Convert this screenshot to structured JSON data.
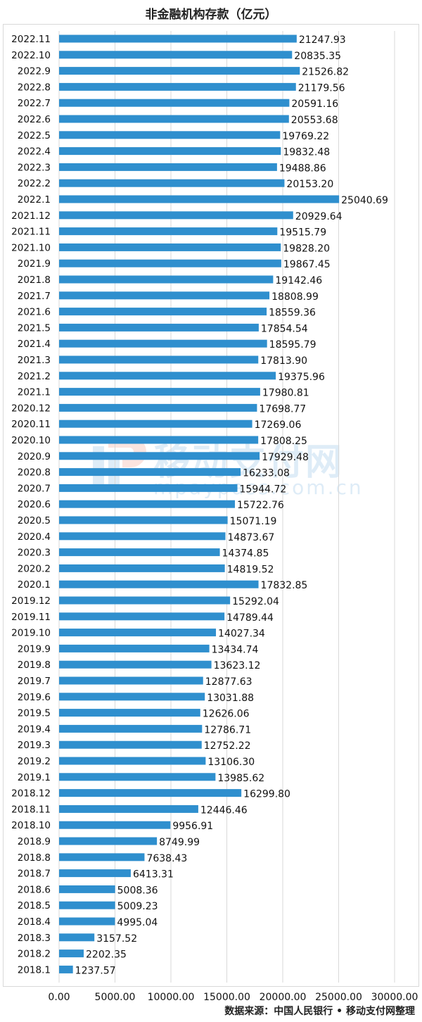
{
  "source_note": "数据来源：中国人民银行 • 移动支付网整理",
  "watermark": {
    "text": "移动支付网",
    "subtext": "mpaypass.com.cn",
    "color": "#3a8fd0"
  },
  "colors": {
    "bar": "#2f8fce",
    "grid": "#d9d9d9",
    "text": "#111111"
  },
  "chart_data": {
    "type": "bar",
    "orientation": "horizontal",
    "title": "非金融机构存款（亿元）",
    "xlabel": "",
    "ylabel": "",
    "xlim": [
      0,
      30000
    ],
    "x_ticks": [
      0,
      5000,
      10000,
      15000,
      20000,
      25000,
      30000
    ],
    "x_tick_labels": [
      "0.00",
      "5000.00",
      "10000.00",
      "15000.00",
      "20000.00",
      "25000.00",
      "30000.00"
    ],
    "grid": true,
    "categories": [
      "2022.11",
      "2022.10",
      "2022.9",
      "2022.8",
      "2022.7",
      "2022.6",
      "2022.5",
      "2022.4",
      "2022.3",
      "2022.2",
      "2022.1",
      "2021.12",
      "2021.11",
      "2021.10",
      "2021.9",
      "2021.8",
      "2021.7",
      "2021.6",
      "2021.5",
      "2021.4",
      "2021.3",
      "2021.2",
      "2021.1",
      "2020.12",
      "2020.11",
      "2020.10",
      "2020.9",
      "2020.8",
      "2020.7",
      "2020.6",
      "2020.5",
      "2020.4",
      "2020.3",
      "2020.2",
      "2020.1",
      "2019.12",
      "2019.11",
      "2019.10",
      "2019.9",
      "2019.8",
      "2019.7",
      "2019.6",
      "2019.5",
      "2019.4",
      "2019.3",
      "2019.2",
      "2019.1",
      "2018.12",
      "2018.11",
      "2018.10",
      "2018.9",
      "2018.8",
      "2018.7",
      "2018.6",
      "2018.5",
      "2018.4",
      "2018.3",
      "2018.2",
      "2018.1"
    ],
    "values": [
      21247.93,
      20835.35,
      21526.82,
      21179.56,
      20591.16,
      20553.68,
      19769.22,
      19832.48,
      19488.86,
      20153.2,
      25040.69,
      20929.64,
      19515.79,
      19828.2,
      19867.45,
      19142.46,
      18808.99,
      18559.36,
      17854.54,
      18595.79,
      17813.9,
      19375.96,
      17980.81,
      17698.77,
      17269.06,
      17808.25,
      17929.48,
      16233.08,
      15944.72,
      15722.76,
      15071.19,
      14873.67,
      14374.85,
      14819.52,
      17832.85,
      15292.04,
      14789.44,
      14027.34,
      13434.74,
      13623.12,
      12877.63,
      13031.88,
      12626.06,
      12786.71,
      12752.22,
      13106.3,
      13985.62,
      16299.8,
      12446.46,
      9956.91,
      8749.99,
      7638.43,
      6413.31,
      5008.36,
      5009.23,
      4995.04,
      3157.52,
      2202.35,
      1237.57
    ],
    "value_labels": [
      "21247.93",
      "20835.35",
      "21526.82",
      "21179.56",
      "20591.16",
      "20553.68",
      "19769.22",
      "19832.48",
      "19488.86",
      "20153.20",
      "25040.69",
      "20929.64",
      "19515.79",
      "19828.20",
      "19867.45",
      "19142.46",
      "18808.99",
      "18559.36",
      "17854.54",
      "18595.79",
      "17813.90",
      "19375.96",
      "17980.81",
      "17698.77",
      "17269.06",
      "17808.25",
      "17929.48",
      "16233.08",
      "15944.72",
      "15722.76",
      "15071.19",
      "14873.67",
      "14374.85",
      "14819.52",
      "17832.85",
      "15292.04",
      "14789.44",
      "14027.34",
      "13434.74",
      "13623.12",
      "12877.63",
      "13031.88",
      "12626.06",
      "12786.71",
      "12752.22",
      "13106.30",
      "13985.62",
      "16299.80",
      "12446.46",
      "9956.91",
      "8749.99",
      "7638.43",
      "6413.31",
      "5008.36",
      "5009.23",
      "4995.04",
      "3157.52",
      "2202.35",
      "1237.57"
    ]
  }
}
